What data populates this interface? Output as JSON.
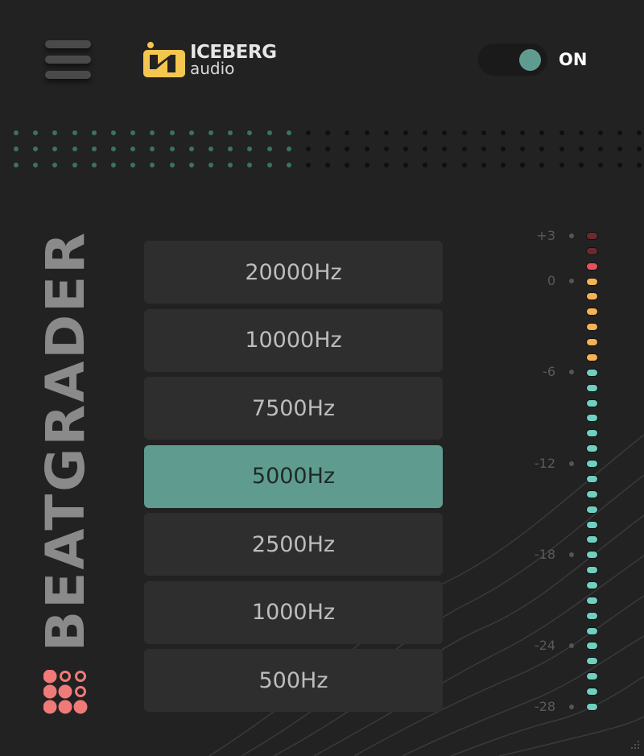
{
  "header": {
    "logo_text": "ICEBERG",
    "logo_subtext": "audio",
    "power_label": "ON",
    "power_on": true
  },
  "title": "BEATGRADER",
  "frequencies": [
    {
      "label": "20000Hz",
      "active": false
    },
    {
      "label": "10000Hz",
      "active": false
    },
    {
      "label": "7500Hz",
      "active": false
    },
    {
      "label": "5000Hz",
      "active": true
    },
    {
      "label": "2500Hz",
      "active": false
    },
    {
      "label": "1000Hz",
      "active": false
    },
    {
      "label": "500Hz",
      "active": false
    }
  ],
  "meter": {
    "scale_labels": [
      "+3",
      "0",
      "-6",
      "-12",
      "-18",
      "-24",
      "-28"
    ],
    "led_colors": {
      "clip_dim": "#6b2a2e",
      "clip": "#e8505e",
      "warn": "#f2b255",
      "normal": "#6fd0c0"
    },
    "led_sequence": [
      "clip_dim",
      "clip_dim",
      "clip",
      "warn",
      "warn",
      "warn",
      "warn",
      "warn",
      "warn"
    ]
  },
  "colors": {
    "accent": "#5f9c8f",
    "background": "#222222",
    "logo": "#f5c64f",
    "grid_icon": "#f07a78"
  }
}
